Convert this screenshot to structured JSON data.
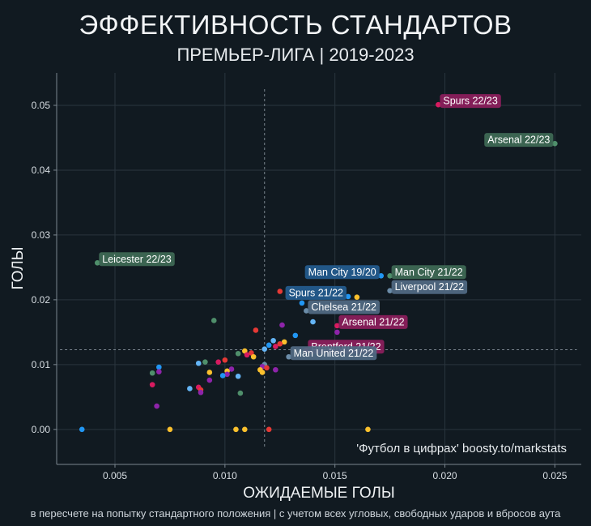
{
  "header": {
    "title": "ЭФФЕКТИВНОСТЬ СТАНДАРТОВ",
    "subtitle": "ПРЕМЬЕР-ЛИГА | 2019-2023"
  },
  "footer": {
    "note": "в пересчете на попытку стандартного положения | с учетом всех угловых, свободных ударов и вбросов аута"
  },
  "chart_data": {
    "type": "scatter",
    "title": "ЭФФЕКТИВНОСТЬ СТАНДАРТОВ",
    "subtitle": "ПРЕМЬЕР-ЛИГА | 2019-2023",
    "xlabel": "ОЖИДАЕМЫЕ ГОЛЫ",
    "ylabel": "ГОЛЫ",
    "xlim": [
      0.00235,
      0.0262
    ],
    "ylim": [
      -0.0054,
      0.055
    ],
    "xticks": [
      0.005,
      0.01,
      0.015,
      0.02,
      0.025
    ],
    "yticks": [
      0.0,
      0.01,
      0.02,
      0.03,
      0.04,
      0.05
    ],
    "xtick_labels": [
      "0.005",
      "0.010",
      "0.015",
      "0.020",
      "0.025"
    ],
    "ytick_labels": [
      "0.00",
      "0.01",
      "0.02",
      "0.03",
      "0.04",
      "0.05"
    ],
    "grid": true,
    "reference_lines": {
      "x_mean": 0.0118,
      "y_mean": 0.0123
    },
    "watermark": "'Футбол в цифрах' boosty.to/markstats",
    "labeled_points": [
      {
        "label": "Spurs 22/23",
        "x": 0.0197,
        "y": 0.0501,
        "color": "#d81b60",
        "box": "#8c1f5c",
        "anchor": "right"
      },
      {
        "label": "Arsenal 22/23",
        "x": 0.025,
        "y": 0.0441,
        "color": "#4f8f6b",
        "box": "#3e6a55",
        "anchor": "left"
      },
      {
        "label": "Leicester 22/23",
        "x": 0.0042,
        "y": 0.0257,
        "color": "#4f8f6b",
        "box": "#3e6a55",
        "anchor": "right"
      },
      {
        "label": "Man City 19/20",
        "x": 0.0171,
        "y": 0.0237,
        "color": "#2196f3",
        "box": "#235d8f",
        "anchor": "left"
      },
      {
        "label": "Man City 21/22",
        "x": 0.0175,
        "y": 0.0237,
        "color": "#4f8f6b",
        "box": "#3e6a55",
        "anchor": "right"
      },
      {
        "label": "Liverpool 21/22",
        "x": 0.0175,
        "y": 0.0214,
        "color": "#6b8ca8",
        "box": "#516b83",
        "anchor": "right"
      },
      {
        "label": "Spurs 21/22",
        "x": 0.0156,
        "y": 0.0205,
        "color": "#2196f3",
        "box": "#235d8f",
        "anchor": "left"
      },
      {
        "label": "Chelsea 21/22",
        "x": 0.0137,
        "y": 0.0183,
        "color": "#6b8ca8",
        "box": "#516b83",
        "anchor": "right"
      },
      {
        "label": "Arsenal 21/22",
        "x": 0.0151,
        "y": 0.016,
        "color": "#d81b60",
        "box": "#8c1f5c",
        "anchor": "right"
      },
      {
        "label": "Brentford 21/22",
        "x": 0.0137,
        "y": 0.0122,
        "color": "#d81b60",
        "box": "#8c1f5c",
        "anchor": "right"
      },
      {
        "label": "Man United 21/22",
        "x": 0.0129,
        "y": 0.0112,
        "color": "#6b8ca8",
        "box": "#516b83",
        "anchor": "right"
      }
    ],
    "points": [
      {
        "x": 0.0125,
        "y": 0.0213,
        "color": "#e53935"
      },
      {
        "x": 0.016,
        "y": 0.0204,
        "color": "#fbc02d"
      },
      {
        "x": 0.0135,
        "y": 0.0195,
        "color": "#2196f3"
      },
      {
        "x": 0.014,
        "y": 0.0166,
        "color": "#64b5f6"
      },
      {
        "x": 0.0151,
        "y": 0.015,
        "color": "#8e24aa"
      },
      {
        "x": 0.0095,
        "y": 0.0168,
        "color": "#4f8f6b"
      },
      {
        "x": 0.0126,
        "y": 0.0161,
        "color": "#8e24aa"
      },
      {
        "x": 0.0132,
        "y": 0.0145,
        "color": "#2196f3"
      },
      {
        "x": 0.0114,
        "y": 0.0153,
        "color": "#e53935"
      },
      {
        "x": 0.0122,
        "y": 0.0137,
        "color": "#64b5f6"
      },
      {
        "x": 0.0127,
        "y": 0.0135,
        "color": "#fbc02d"
      },
      {
        "x": 0.0125,
        "y": 0.0132,
        "color": "#e53935"
      },
      {
        "x": 0.012,
        "y": 0.013,
        "color": "#2196f3"
      },
      {
        "x": 0.0118,
        "y": 0.0124,
        "color": "#64b5f6"
      },
      {
        "x": 0.0123,
        "y": 0.0128,
        "color": "#d81b60"
      },
      {
        "x": 0.0109,
        "y": 0.0121,
        "color": "#fbc02d"
      },
      {
        "x": 0.0112,
        "y": 0.0118,
        "color": "#e53935"
      },
      {
        "x": 0.011,
        "y": 0.0115,
        "color": "#d81b60"
      },
      {
        "x": 0.0113,
        "y": 0.0112,
        "color": "#fbc02d"
      },
      {
        "x": 0.0106,
        "y": 0.0117,
        "color": "#4f8f6b"
      },
      {
        "x": 0.01,
        "y": 0.0107,
        "color": "#e53935"
      },
      {
        "x": 0.0097,
        "y": 0.0104,
        "color": "#d81b60"
      },
      {
        "x": 0.0091,
        "y": 0.0104,
        "color": "#4f8f6b"
      },
      {
        "x": 0.0088,
        "y": 0.0102,
        "color": "#64b5f6"
      },
      {
        "x": 0.0118,
        "y": 0.01,
        "color": "#6b8ca8"
      },
      {
        "x": 0.0117,
        "y": 0.0097,
        "color": "#8e24aa"
      },
      {
        "x": 0.0119,
        "y": 0.0095,
        "color": "#e53935"
      },
      {
        "x": 0.0116,
        "y": 0.0092,
        "color": "#fbc02d"
      },
      {
        "x": 0.0123,
        "y": 0.0092,
        "color": "#8e24aa"
      },
      {
        "x": 0.0117,
        "y": 0.0088,
        "color": "#fbc02d"
      },
      {
        "x": 0.0103,
        "y": 0.0093,
        "color": "#8e24aa"
      },
      {
        "x": 0.0101,
        "y": 0.009,
        "color": "#fbc02d"
      },
      {
        "x": 0.0093,
        "y": 0.0088,
        "color": "#fbc02d"
      },
      {
        "x": 0.0101,
        "y": 0.0085,
        "color": "#8e24aa"
      },
      {
        "x": 0.0099,
        "y": 0.0083,
        "color": "#2196f3"
      },
      {
        "x": 0.0106,
        "y": 0.0082,
        "color": "#64b5f6"
      },
      {
        "x": 0.007,
        "y": 0.0096,
        "color": "#2196f3"
      },
      {
        "x": 0.007,
        "y": 0.0089,
        "color": "#8e24aa"
      },
      {
        "x": 0.0067,
        "y": 0.0087,
        "color": "#4f8f6b"
      },
      {
        "x": 0.0093,
        "y": 0.0076,
        "color": "#8e24aa"
      },
      {
        "x": 0.0067,
        "y": 0.0069,
        "color": "#d81b60"
      },
      {
        "x": 0.0084,
        "y": 0.0063,
        "color": "#64b5f6"
      },
      {
        "x": 0.0088,
        "y": 0.0065,
        "color": "#d81b60"
      },
      {
        "x": 0.0089,
        "y": 0.0061,
        "color": "#e53935"
      },
      {
        "x": 0.0089,
        "y": 0.0057,
        "color": "#8e24aa"
      },
      {
        "x": 0.0107,
        "y": 0.0056,
        "color": "#4f8f6b"
      },
      {
        "x": 0.0069,
        "y": 0.0036,
        "color": "#8e24aa"
      },
      {
        "x": 0.0035,
        "y": 0.0,
        "color": "#2196f3"
      },
      {
        "x": 0.0075,
        "y": 0.0,
        "color": "#fbc02d"
      },
      {
        "x": 0.0105,
        "y": 0.0,
        "color": "#fbc02d"
      },
      {
        "x": 0.0109,
        "y": 0.0,
        "color": "#fbc02d"
      },
      {
        "x": 0.012,
        "y": 0.0,
        "color": "#e53935"
      },
      {
        "x": 0.0165,
        "y": 0.0,
        "color": "#fbc02d"
      }
    ]
  }
}
